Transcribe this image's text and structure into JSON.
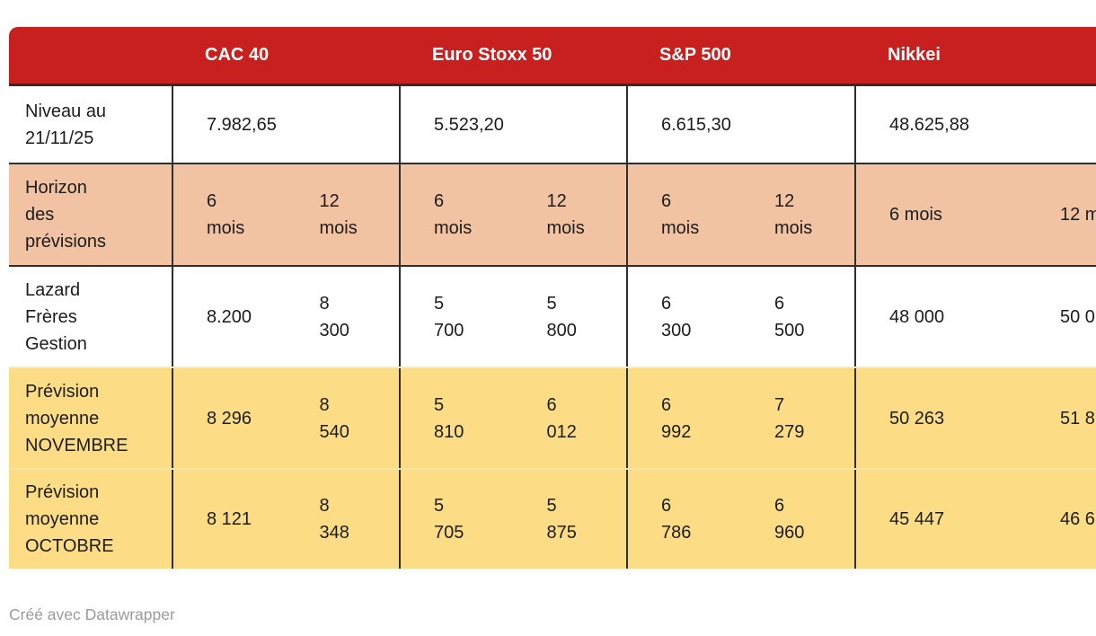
{
  "chart_data": {
    "type": "table",
    "columns": [
      "CAC 40",
      "Euro Stoxx 50",
      "S&P 500",
      "Nikkei"
    ],
    "rows": [
      {
        "label": "Niveau au\n21/11/25",
        "values": [
          "7.982,65",
          "5.523,20",
          "6.615,30",
          "48.625,88"
        ]
      },
      {
        "label": "Horizon\ndes\nprévisions",
        "cells": [
          [
            "6\nmois",
            "12\nmois"
          ],
          [
            "6\nmois",
            "12\nmois"
          ],
          [
            "6\nmois",
            "12\nmois"
          ],
          [
            "6 mois",
            "12 m"
          ]
        ]
      },
      {
        "label": "Lazard\nFrères\nGestion",
        "cells": [
          [
            "8.200",
            "8\n300"
          ],
          [
            "5\n700",
            "5\n800"
          ],
          [
            "6\n300",
            "6\n500"
          ],
          [
            "48 000",
            "50 0"
          ]
        ]
      },
      {
        "label": "Prévision\nmoyenne\nNOVEMBRE",
        "cells": [
          [
            "8 296",
            "8\n540"
          ],
          [
            "5\n810",
            "6\n012"
          ],
          [
            "6\n992",
            "7\n279"
          ],
          [
            "50 263",
            "51 8"
          ]
        ]
      },
      {
        "label": "Prévision\nmoyenne\nOCTOBRE",
        "cells": [
          [
            "8 121",
            "8\n348"
          ],
          [
            "5\n705",
            "5\n875"
          ],
          [
            "6\n786",
            "6\n960"
          ],
          [
            "45 447",
            "46 6"
          ]
        ]
      }
    ],
    "layout_hints": {
      "sub_columns_per_index": [
        "6 mois",
        "12 mois"
      ],
      "right_edge_clipped": true
    }
  },
  "footer": {
    "credit": "Créé avec Datawrapper"
  },
  "colors": {
    "header_bg": "#c8201f",
    "header_text": "#ffffff",
    "horizon_row_bg": "#f1c3a3",
    "forecast_row_bg": "#fcdd86",
    "border_dark": "#2e2e2e",
    "body_text": "#1c1c1c",
    "credit_text": "#9b9b9b"
  }
}
